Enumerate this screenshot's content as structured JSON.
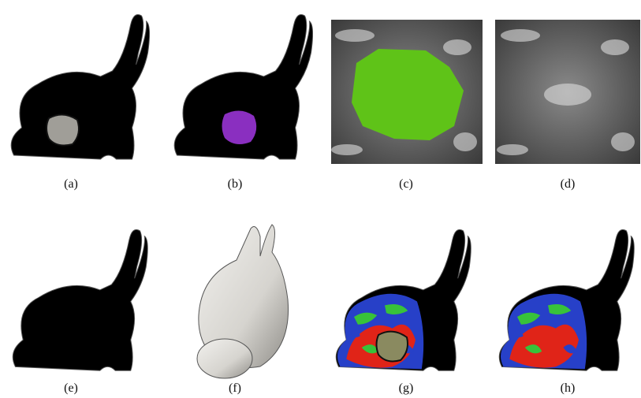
{
  "captions": [
    "(a)",
    "(b)",
    "(c)",
    "(d)",
    "(e)",
    "(f)",
    "(g)",
    "(h)"
  ]
}
